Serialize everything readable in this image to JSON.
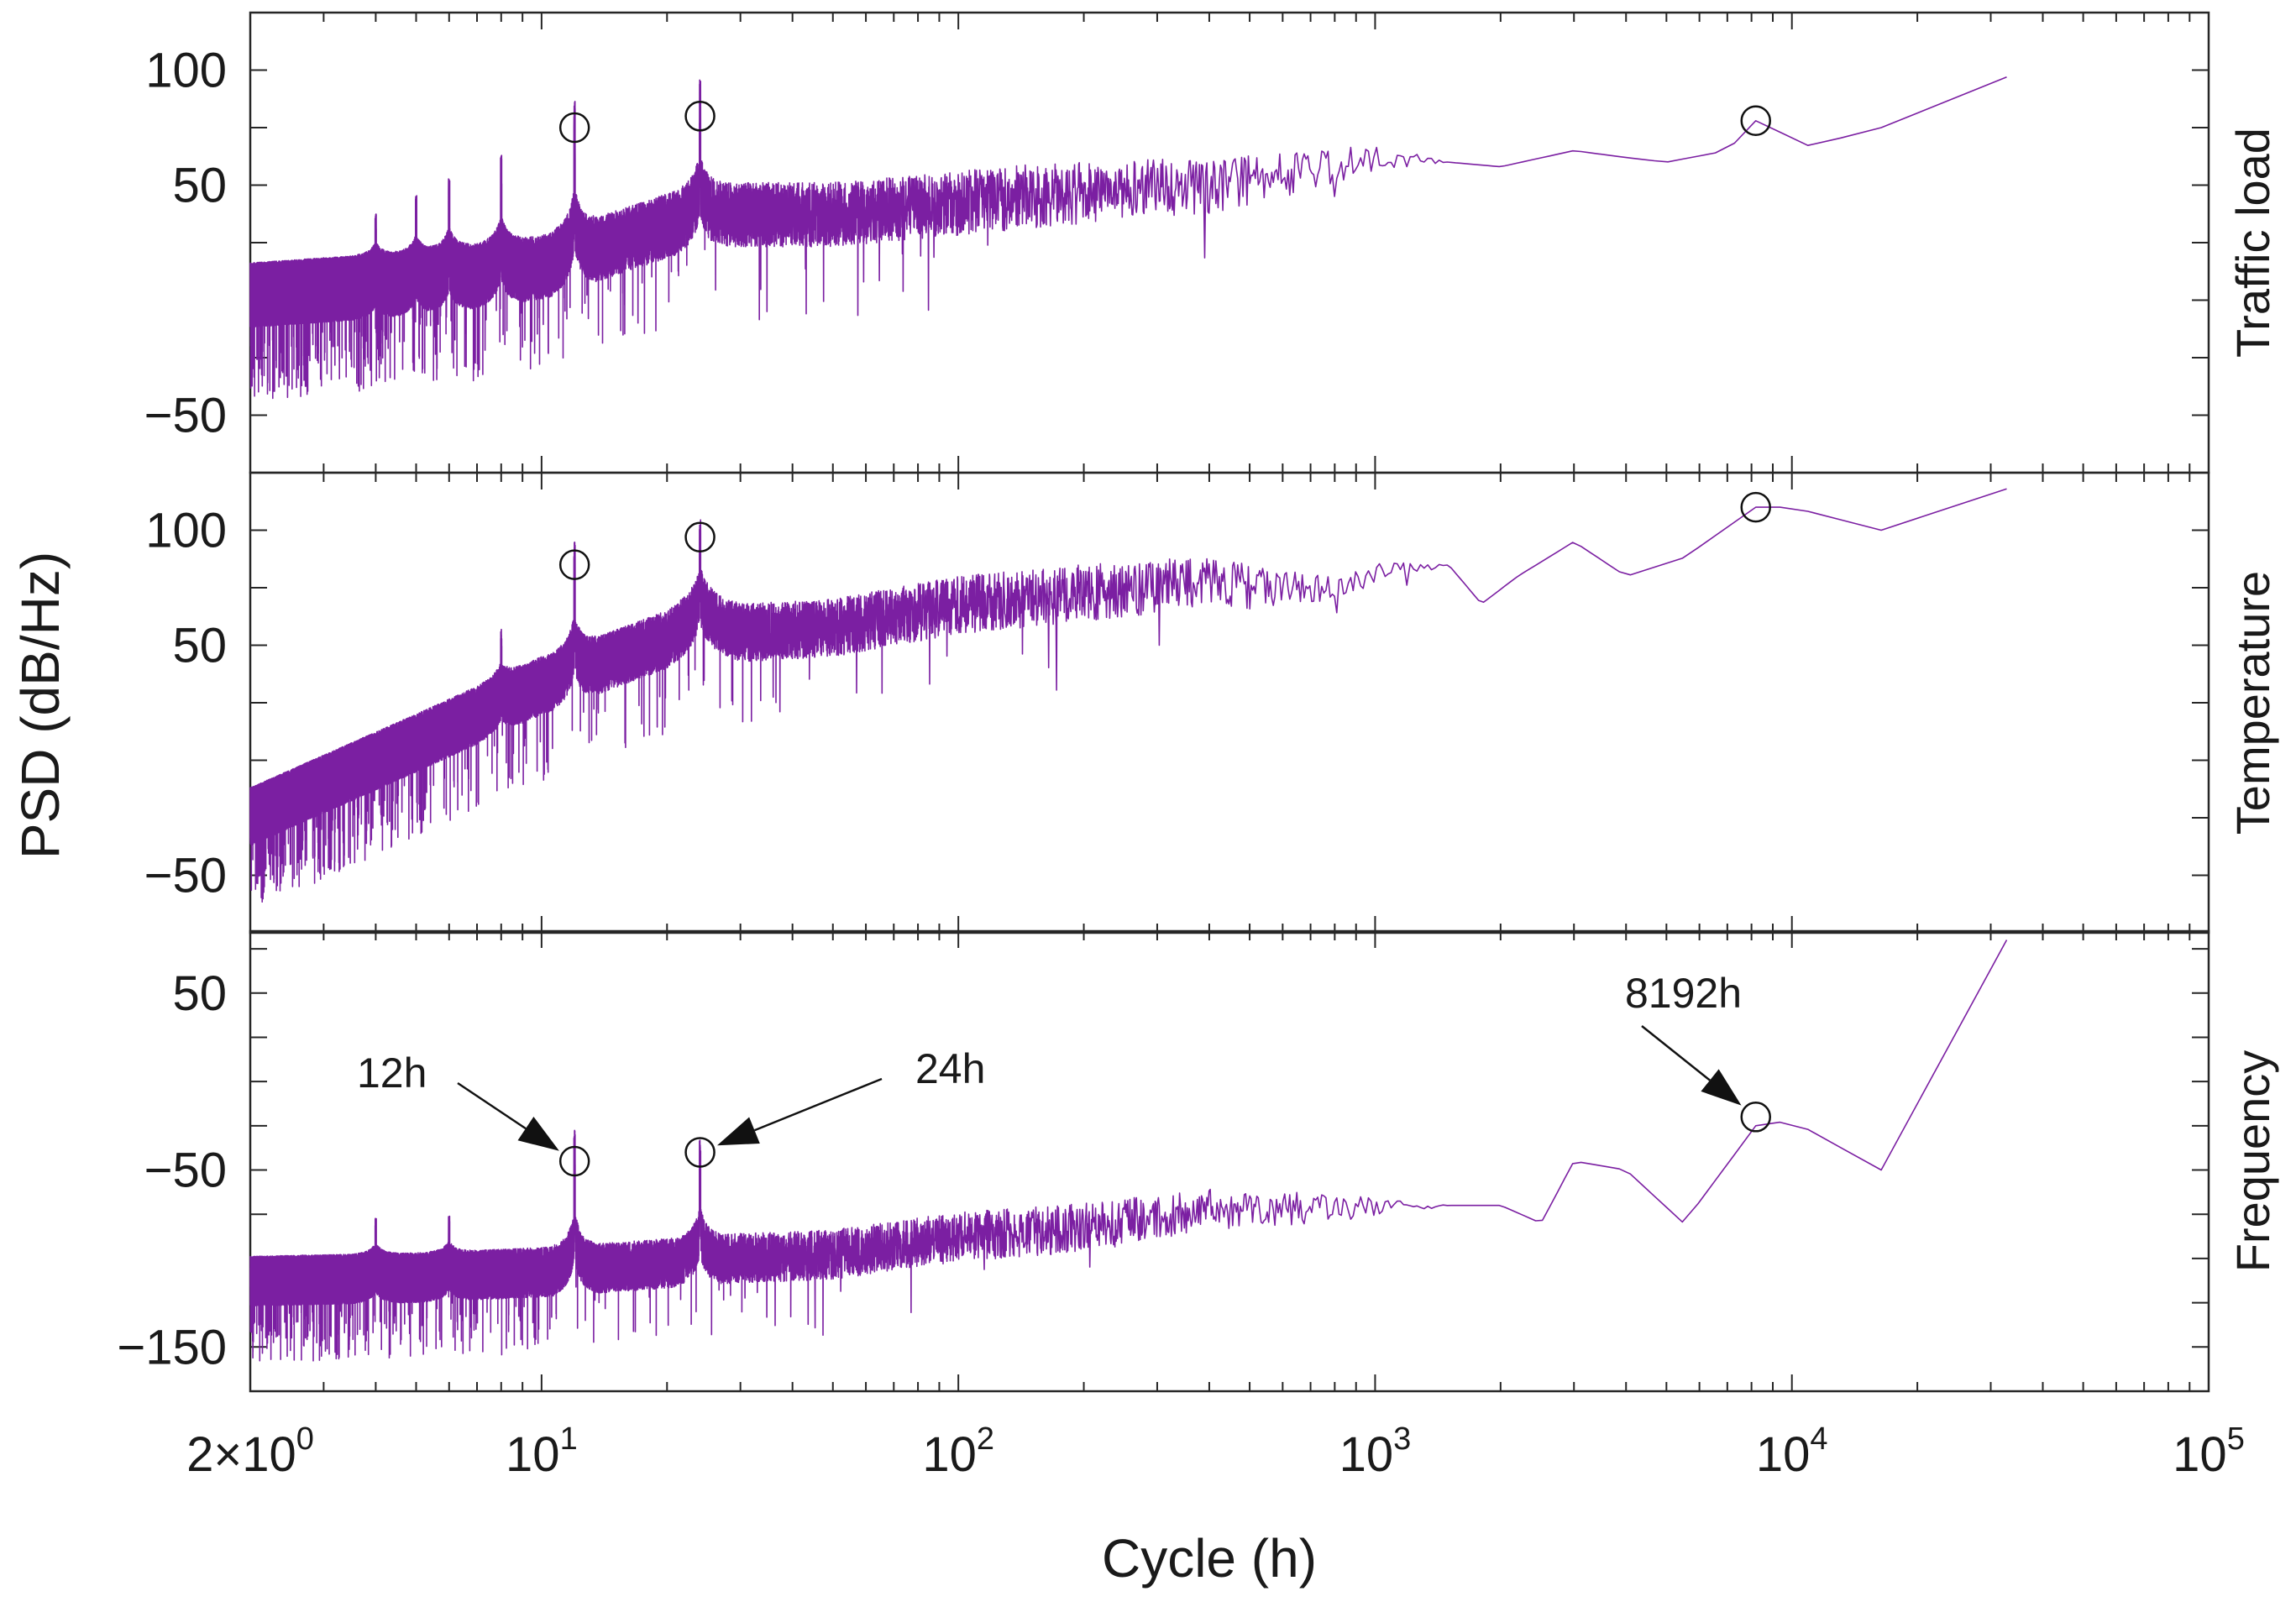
{
  "chart_data": {
    "type": "line",
    "title": "",
    "xlabel": "Cycle (h)",
    "ylabel": "PSD (dB/Hz)",
    "xscale": "log",
    "xlim": [
      2,
      100000
    ],
    "series_color": "#7B1FA2",
    "x_ticks": [
      {
        "value": 2,
        "base": "2×10",
        "exp": "0"
      },
      {
        "value": 10,
        "base": "10",
        "exp": "1"
      },
      {
        "value": 100,
        "base": "10",
        "exp": "2"
      },
      {
        "value": 1000,
        "base": "10",
        "exp": "3"
      },
      {
        "value": 10000,
        "base": "10",
        "exp": "4"
      },
      {
        "value": 100000,
        "base": "10",
        "exp": "5"
      }
    ],
    "panels": [
      {
        "name": "Traffic load",
        "ylim": [
          -75,
          125
        ],
        "yticks": [
          -50,
          50,
          100
        ],
        "ytick_labels": [
          "−50",
          "50",
          "100"
        ],
        "anchors": [
          [
            2,
            5
          ],
          [
            5,
            10
          ],
          [
            10,
            17
          ],
          [
            20,
            35
          ],
          [
            24,
            40
          ],
          [
            50,
            40
          ],
          [
            100,
            45
          ],
          [
            200,
            50
          ],
          [
            400,
            52
          ],
          [
            700,
            58
          ],
          [
            1000,
            63
          ],
          [
            1500,
            60
          ],
          [
            2000,
            58
          ],
          [
            3000,
            65
          ],
          [
            4000,
            62
          ],
          [
            5000,
            60
          ],
          [
            7000,
            65
          ],
          [
            8192,
            78
          ],
          [
            11000,
            67
          ],
          [
            16384,
            75
          ],
          [
            32768,
            97
          ]
        ],
        "noise_amp": 20,
        "peaks": [
          [
            4,
            18
          ],
          [
            5,
            25
          ],
          [
            6,
            30
          ],
          [
            8,
            37
          ],
          [
            12,
            55
          ],
          [
            24,
            45
          ]
        ],
        "markers": [
          [
            12,
            75
          ],
          [
            24,
            80
          ],
          [
            8192,
            78
          ]
        ]
      },
      {
        "name": "Temperature",
        "ylim": [
          -75,
          125
        ],
        "yticks": [
          -50,
          50,
          100
        ],
        "ytick_labels": [
          "−50",
          "50",
          "100"
        ],
        "anchors": [
          [
            2,
            -22
          ],
          [
            5,
            10
          ],
          [
            10,
            35
          ],
          [
            12,
            40
          ],
          [
            20,
            55
          ],
          [
            24,
            65
          ],
          [
            30,
            58
          ],
          [
            50,
            60
          ],
          [
            100,
            70
          ],
          [
            200,
            75
          ],
          [
            400,
            80
          ],
          [
            600,
            75
          ],
          [
            1000,
            82
          ],
          [
            1500,
            85
          ],
          [
            1800,
            68
          ],
          [
            2200,
            80
          ],
          [
            3000,
            95
          ],
          [
            4000,
            80
          ],
          [
            5500,
            88
          ],
          [
            8192,
            110
          ],
          [
            10000,
            110
          ],
          [
            16384,
            100
          ],
          [
            32768,
            118
          ]
        ],
        "noise_amp": 18,
        "peaks": [
          [
            8,
            20
          ],
          [
            12,
            45
          ],
          [
            24,
            32
          ]
        ],
        "markers": [
          [
            12,
            85
          ],
          [
            24,
            97
          ],
          [
            8192,
            110
          ]
        ]
      },
      {
        "name": "Frequency",
        "ylim": [
          -175,
          85
        ],
        "yticks": [
          -150,
          -50,
          50
        ],
        "ytick_labels": [
          "−150",
          "−50",
          "50"
        ],
        "anchors": [
          [
            2,
            -110
          ],
          [
            5,
            -108
          ],
          [
            10,
            -105
          ],
          [
            20,
            -100
          ],
          [
            24,
            -98
          ],
          [
            50,
            -95
          ],
          [
            100,
            -85
          ],
          [
            200,
            -80
          ],
          [
            400,
            -70
          ],
          [
            1000,
            -70
          ],
          [
            2000,
            -70
          ],
          [
            2500,
            -80
          ],
          [
            3000,
            -45
          ],
          [
            4000,
            -50
          ],
          [
            5500,
            -80
          ],
          [
            8192,
            -25
          ],
          [
            10000,
            -22
          ],
          [
            16384,
            -50
          ],
          [
            32768,
            80
          ]
        ],
        "noise_amp": 20,
        "peaks": [
          [
            4,
            20
          ],
          [
            6,
            20
          ],
          [
            12,
            65
          ],
          [
            24,
            55
          ]
        ],
        "markers": [
          [
            12,
            -45
          ],
          [
            24,
            -40
          ],
          [
            8192,
            -20
          ]
        ]
      }
    ],
    "annotations": [
      {
        "label": "12h",
        "panel": 2,
        "x": 12
      },
      {
        "label": "24h",
        "panel": 2,
        "x": 24
      },
      {
        "label": "8192h",
        "panel": 2,
        "x": 8192
      }
    ]
  }
}
